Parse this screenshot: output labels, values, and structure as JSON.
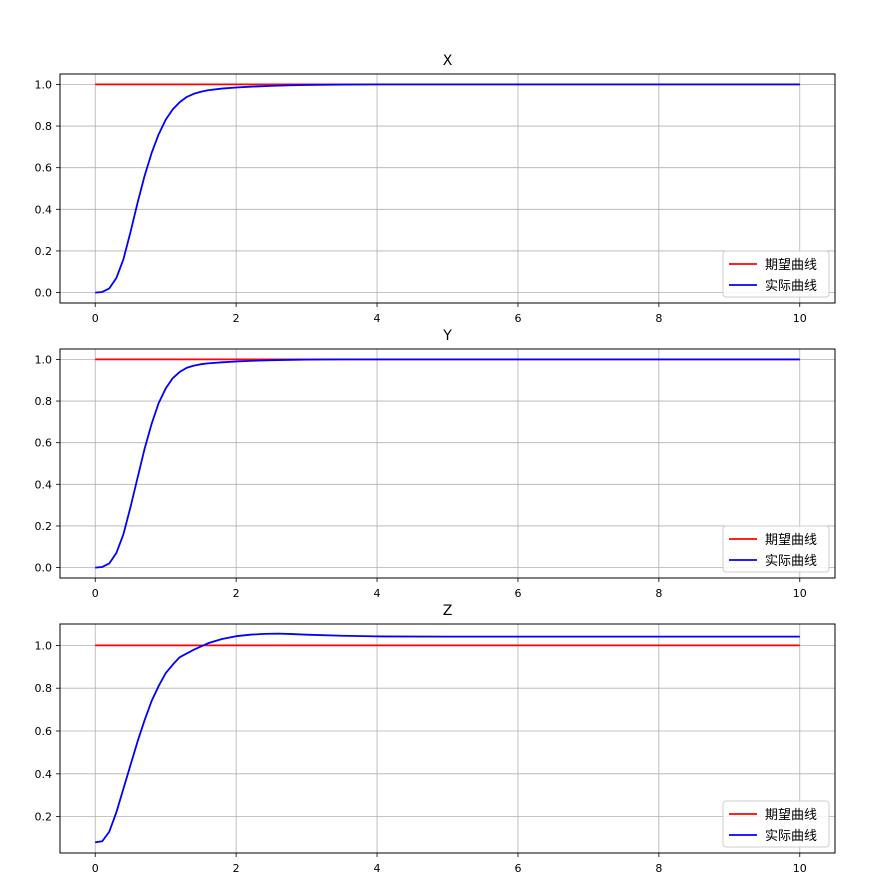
{
  "chart_data": [
    {
      "type": "line",
      "title": "X",
      "xlim": [
        -0.5,
        10.5
      ],
      "ylim": [
        -0.05,
        1.05
      ],
      "xticks": [
        0,
        2,
        4,
        6,
        8,
        10
      ],
      "xtick_labels": [
        "0",
        "2",
        "4",
        "6",
        "8",
        "10"
      ],
      "yticks": [
        0.0,
        0.2,
        0.4,
        0.6,
        0.8,
        1.0
      ],
      "ytick_labels": [
        "0.0",
        "0.2",
        "0.4",
        "0.6",
        "0.8",
        "1.0"
      ],
      "grid": true,
      "legend_position": "lower-right",
      "series": [
        {
          "name": "期望曲线",
          "color": "#ff0000",
          "x": [
            0,
            10
          ],
          "y": [
            1.0,
            1.0
          ]
        },
        {
          "name": "实际曲线",
          "color": "#0000ff",
          "x": [
            0,
            0.1,
            0.2,
            0.3,
            0.4,
            0.5,
            0.6,
            0.7,
            0.8,
            0.9,
            1.0,
            1.1,
            1.2,
            1.3,
            1.4,
            1.5,
            1.6,
            1.8,
            2.0,
            2.2,
            2.5,
            2.8,
            3.0,
            3.5,
            4.0,
            5.0,
            6.0,
            7.0,
            8.0,
            9.0,
            10.0
          ],
          "y": [
            0.0,
            0.003,
            0.02,
            0.07,
            0.16,
            0.29,
            0.43,
            0.56,
            0.67,
            0.76,
            0.83,
            0.88,
            0.915,
            0.94,
            0.955,
            0.965,
            0.972,
            0.98,
            0.985,
            0.989,
            0.993,
            0.996,
            0.997,
            0.999,
            1.0,
            1.0,
            1.0,
            1.0,
            1.0,
            1.0,
            1.0
          ]
        }
      ]
    },
    {
      "type": "line",
      "title": "Y",
      "xlim": [
        -0.5,
        10.5
      ],
      "ylim": [
        -0.05,
        1.05
      ],
      "xticks": [
        0,
        2,
        4,
        6,
        8,
        10
      ],
      "xtick_labels": [
        "0",
        "2",
        "4",
        "6",
        "8",
        "10"
      ],
      "yticks": [
        0.0,
        0.2,
        0.4,
        0.6,
        0.8,
        1.0
      ],
      "ytick_labels": [
        "0.0",
        "0.2",
        "0.4",
        "0.6",
        "0.8",
        "1.0"
      ],
      "grid": true,
      "legend_position": "lower-right",
      "series": [
        {
          "name": "期望曲线",
          "color": "#ff0000",
          "x": [
            0,
            10
          ],
          "y": [
            1.0,
            1.0
          ]
        },
        {
          "name": "实际曲线",
          "color": "#0000ff",
          "x": [
            0,
            0.1,
            0.2,
            0.3,
            0.4,
            0.5,
            0.6,
            0.7,
            0.8,
            0.9,
            1.0,
            1.1,
            1.2,
            1.3,
            1.4,
            1.5,
            1.6,
            1.8,
            2.0,
            2.2,
            2.5,
            2.8,
            3.0,
            3.5,
            4.0,
            5.0,
            6.0,
            7.0,
            8.0,
            9.0,
            10.0
          ],
          "y": [
            0.0,
            0.003,
            0.02,
            0.07,
            0.16,
            0.29,
            0.43,
            0.57,
            0.69,
            0.79,
            0.86,
            0.91,
            0.94,
            0.96,
            0.97,
            0.977,
            0.981,
            0.986,
            0.99,
            0.993,
            0.996,
            0.998,
            0.999,
            1.0,
            1.0,
            1.0,
            1.0,
            1.0,
            1.0,
            1.0,
            1.0
          ]
        }
      ]
    },
    {
      "type": "line",
      "title": "Z",
      "xlim": [
        -0.5,
        10.5
      ],
      "ylim": [
        0.03,
        1.1
      ],
      "xticks": [
        0,
        2,
        4,
        6,
        8,
        10
      ],
      "xtick_labels": [
        "0",
        "2",
        "4",
        "6",
        "8",
        "10"
      ],
      "yticks": [
        0.2,
        0.4,
        0.6,
        0.8,
        1.0
      ],
      "ytick_labels": [
        "0.2",
        "0.4",
        "0.6",
        "0.8",
        "1.0"
      ],
      "grid": true,
      "legend_position": "lower-right",
      "series": [
        {
          "name": "期望曲线",
          "color": "#ff0000",
          "x": [
            0,
            10
          ],
          "y": [
            1.0,
            1.0
          ]
        },
        {
          "name": "实际曲线",
          "color": "#0000ff",
          "x": [
            0,
            0.1,
            0.2,
            0.3,
            0.4,
            0.5,
            0.6,
            0.7,
            0.8,
            0.9,
            1.0,
            1.1,
            1.2,
            1.4,
            1.6,
            1.8,
            2.0,
            2.2,
            2.4,
            2.6,
            2.8,
            3.0,
            3.5,
            4.0,
            5.0,
            6.0,
            7.0,
            8.0,
            9.0,
            10.0
          ],
          "y": [
            0.08,
            0.085,
            0.13,
            0.22,
            0.33,
            0.44,
            0.55,
            0.65,
            0.74,
            0.81,
            0.87,
            0.91,
            0.945,
            0.98,
            1.01,
            1.03,
            1.043,
            1.05,
            1.054,
            1.055,
            1.053,
            1.05,
            1.045,
            1.042,
            1.041,
            1.041,
            1.041,
            1.041,
            1.041,
            1.041
          ]
        }
      ]
    }
  ]
}
